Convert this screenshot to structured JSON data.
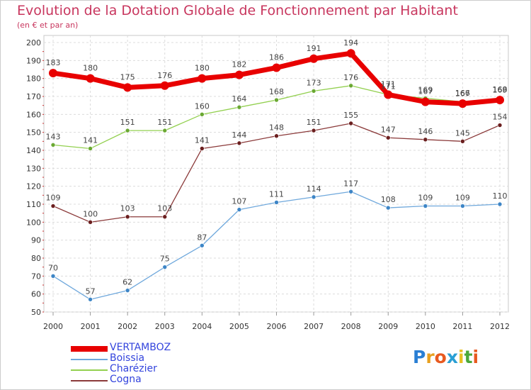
{
  "header": {
    "title": "Evolution de la Dotation Globale de Fonctionnement par Habitant",
    "subtitle": "(en € et par an)"
  },
  "brand": {
    "logo_text": "Proxiti",
    "letter_colors": [
      "#2a7fd4",
      "#e8a020",
      "#e85a20",
      "#2a9fd4",
      "#e8c020",
      "#4aa83a",
      "#e85a20"
    ]
  },
  "chart_data": {
    "type": "line",
    "title": "Evolution de la Dotation Globale de Fonctionnement par Habitant",
    "subtitle": "(en € et par an)",
    "xlabel": "",
    "ylabel": "",
    "ylim": [
      50,
      200
    ],
    "ytick_step": 10,
    "grid": true,
    "legend_position": "bottom-left",
    "categories": [
      "2000",
      "2001",
      "2002",
      "2003",
      "2004",
      "2005",
      "2006",
      "2007",
      "2008",
      "2009",
      "2010",
      "2011",
      "2012"
    ],
    "series": [
      {
        "name": "VERTAMBOZ",
        "color": "#e80000",
        "marker_color": "#e80000",
        "emphasis": true,
        "values": [
          183,
          180,
          175,
          176,
          180,
          182,
          186,
          191,
          194,
          171,
          167,
          166,
          168
        ],
        "labels": [
          "183",
          "180",
          "175",
          "176",
          "180",
          "182",
          "186",
          "191",
          "194",
          "171",
          "167",
          "166",
          "168"
        ]
      },
      {
        "name": "Boissia",
        "color": "#6fa8dc",
        "marker_color": "#3d85c6",
        "emphasis": false,
        "values": [
          70,
          57,
          62,
          75,
          87,
          107,
          111,
          114,
          117,
          108,
          109,
          109,
          110
        ],
        "labels": [
          "70",
          "57",
          "62",
          "75",
          "87",
          "107",
          "111",
          "114",
          "117",
          "108",
          "109",
          "109",
          "110"
        ]
      },
      {
        "name": "Charézier",
        "color": "#93d050",
        "marker_color": "#6aa832",
        "emphasis": false,
        "values": [
          143,
          141,
          151,
          151,
          160,
          164,
          168,
          173,
          176,
          171,
          169,
          167,
          169
        ],
        "labels": [
          "143",
          "141",
          "151",
          "151",
          "160",
          "164",
          "168",
          "173",
          "176",
          "171",
          "169",
          "167",
          "169"
        ]
      },
      {
        "name": "Cogna",
        "color": "#8b3a3a",
        "marker_color": "#6b1f1f",
        "emphasis": false,
        "values": [
          109,
          100,
          103,
          103,
          141,
          144,
          148,
          151,
          155,
          147,
          146,
          145,
          154
        ],
        "labels": [
          "109",
          "100",
          "103",
          "103",
          "141",
          "144",
          "148",
          "151",
          "155",
          "147",
          "146",
          "145",
          "154"
        ]
      }
    ]
  }
}
